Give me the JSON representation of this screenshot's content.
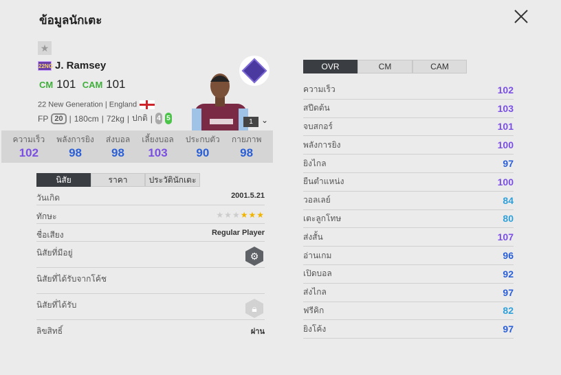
{
  "title": "ข้อมูลนักเตะ",
  "colors": {
    "purple": "#7a4fe2",
    "blue": "#2b5fd6",
    "lightblue": "#2fa0d8",
    "green": "#3fae3a"
  },
  "player": {
    "season_badge": "22NG",
    "name": "J. Ramsey",
    "positions": [
      {
        "pos": "CM",
        "ovr": "101"
      },
      {
        "pos": "CAM",
        "ovr": "101"
      }
    ],
    "season": "22 New Generation",
    "nation": "England",
    "fp_label": "FP",
    "fp": "20",
    "height": "180cm",
    "weight": "72kg",
    "body": "ปกติ",
    "weak_foot": "4",
    "strong_foot": "5",
    "level": "1"
  },
  "summary": [
    {
      "label": "ความเร็ว",
      "value": "102",
      "tier": "purple"
    },
    {
      "label": "พลังการยิง",
      "value": "98",
      "tier": "blue"
    },
    {
      "label": "ส่งบอล",
      "value": "98",
      "tier": "blue"
    },
    {
      "label": "เลี้ยงบอล",
      "value": "103",
      "tier": "purple"
    },
    {
      "label": "ประกบตัว",
      "value": "90",
      "tier": "blue"
    },
    {
      "label": "กายภาพ",
      "value": "98",
      "tier": "blue"
    }
  ],
  "left_tabs": [
    "นิสัย",
    "ราคา",
    "ประวัตินักเตะ"
  ],
  "info": {
    "birth_label": "วันเกิด",
    "birth": "2001.5.21",
    "skill_label": "ทักษะ",
    "skill_stars": 3,
    "skill_max": 6,
    "rep_label": "ชื่อเสียง",
    "rep": "Regular Player",
    "traits_label": "นิสัยที่มีอยู่",
    "coach_label": "นิสัยที่ได้รับจากโค้ช",
    "earned_label": "นิสัยที่ได้รับ",
    "license_label": "ลิขสิทธิ์",
    "license": "ผ่าน"
  },
  "right_tabs": [
    "OVR",
    "CM",
    "CAM"
  ],
  "attributes": [
    {
      "label": "ความเร็ว",
      "value": "102",
      "tier": "purple"
    },
    {
      "label": "สปีดต้น",
      "value": "103",
      "tier": "purple"
    },
    {
      "label": "จบสกอร์",
      "value": "101",
      "tier": "purple"
    },
    {
      "label": "พลังการยิง",
      "value": "100",
      "tier": "purple"
    },
    {
      "label": "ยิงไกล",
      "value": "97",
      "tier": "blue"
    },
    {
      "label": "ยืนตำแหน่ง",
      "value": "100",
      "tier": "purple"
    },
    {
      "label": "วอลเลย์",
      "value": "84",
      "tier": "lightblue"
    },
    {
      "label": "เตะลูกโทษ",
      "value": "80",
      "tier": "lightblue"
    },
    {
      "label": "ส่งสั้น",
      "value": "107",
      "tier": "purple"
    },
    {
      "label": "อ่านเกม",
      "value": "96",
      "tier": "blue"
    },
    {
      "label": "เปิดบอล",
      "value": "92",
      "tier": "blue"
    },
    {
      "label": "ส่งไกล",
      "value": "97",
      "tier": "blue"
    },
    {
      "label": "ฟรีคิก",
      "value": "82",
      "tier": "lightblue"
    },
    {
      "label": "ยิงโค้ง",
      "value": "97",
      "tier": "blue"
    }
  ]
}
